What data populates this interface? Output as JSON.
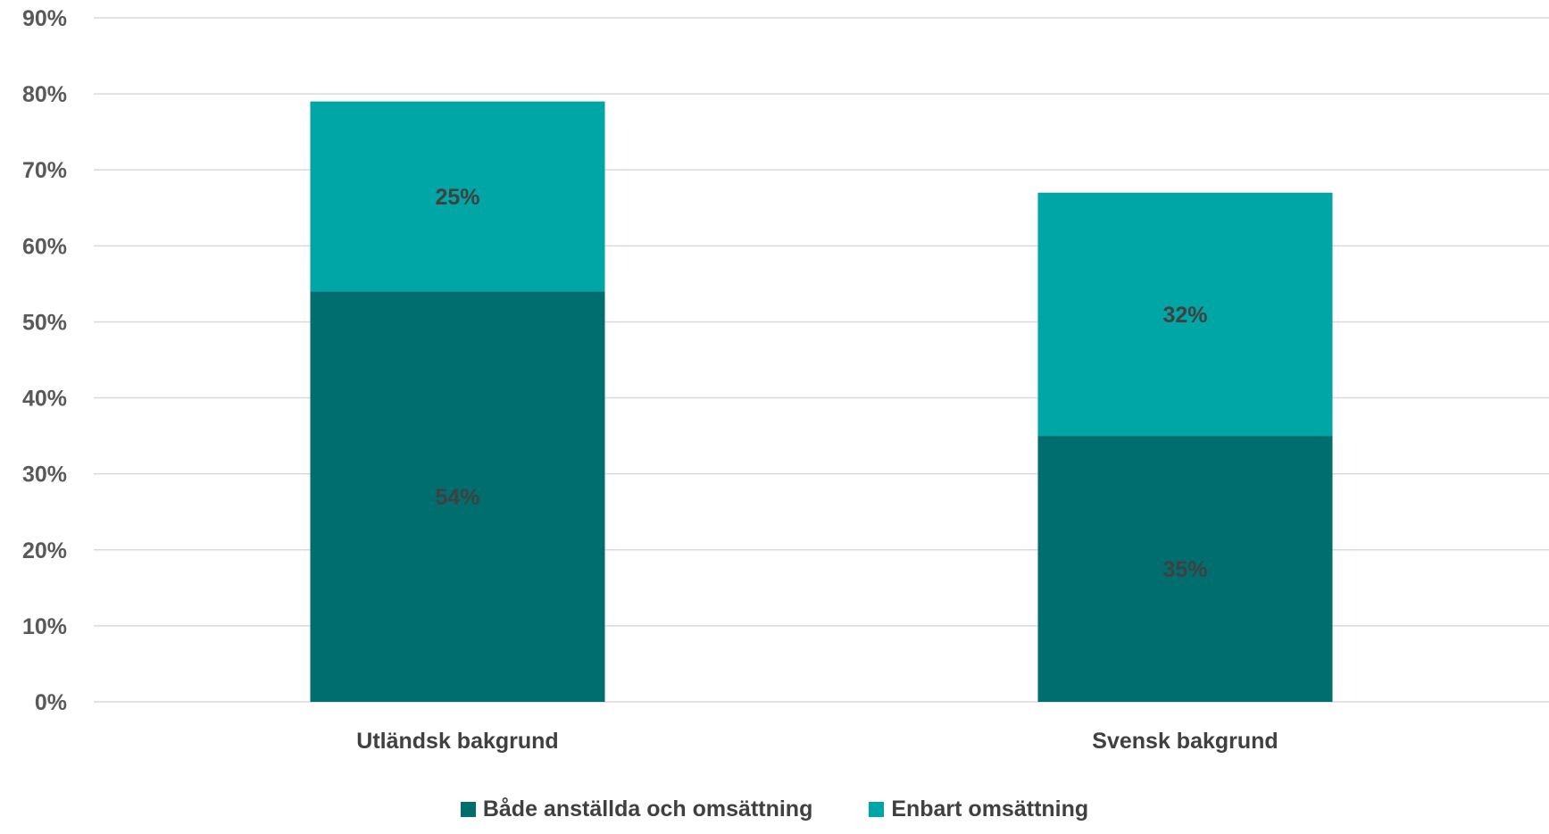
{
  "chart_data": {
    "type": "bar",
    "stacked": true,
    "categories": [
      "Utländsk bakgrund",
      "Svensk bakgrund"
    ],
    "series": [
      {
        "name": "Både anställda och omsättning",
        "values": [
          54,
          35
        ],
        "labels": [
          "54%",
          "35%"
        ],
        "color": "#006E6E"
      },
      {
        "name": "Enbart omsättning",
        "values": [
          25,
          32
        ],
        "labels": [
          "25%",
          "32%"
        ],
        "color": "#00A6A6"
      }
    ],
    "y_ticks": [
      "0%",
      "10%",
      "20%",
      "30%",
      "40%",
      "50%",
      "60%",
      "70%",
      "80%",
      "90%"
    ],
    "ylim": [
      0,
      90
    ],
    "grid": true,
    "legend_position": "bottom",
    "gridline_color": "#D9D9D9",
    "title": "",
    "xlabel": "",
    "ylabel": ""
  }
}
